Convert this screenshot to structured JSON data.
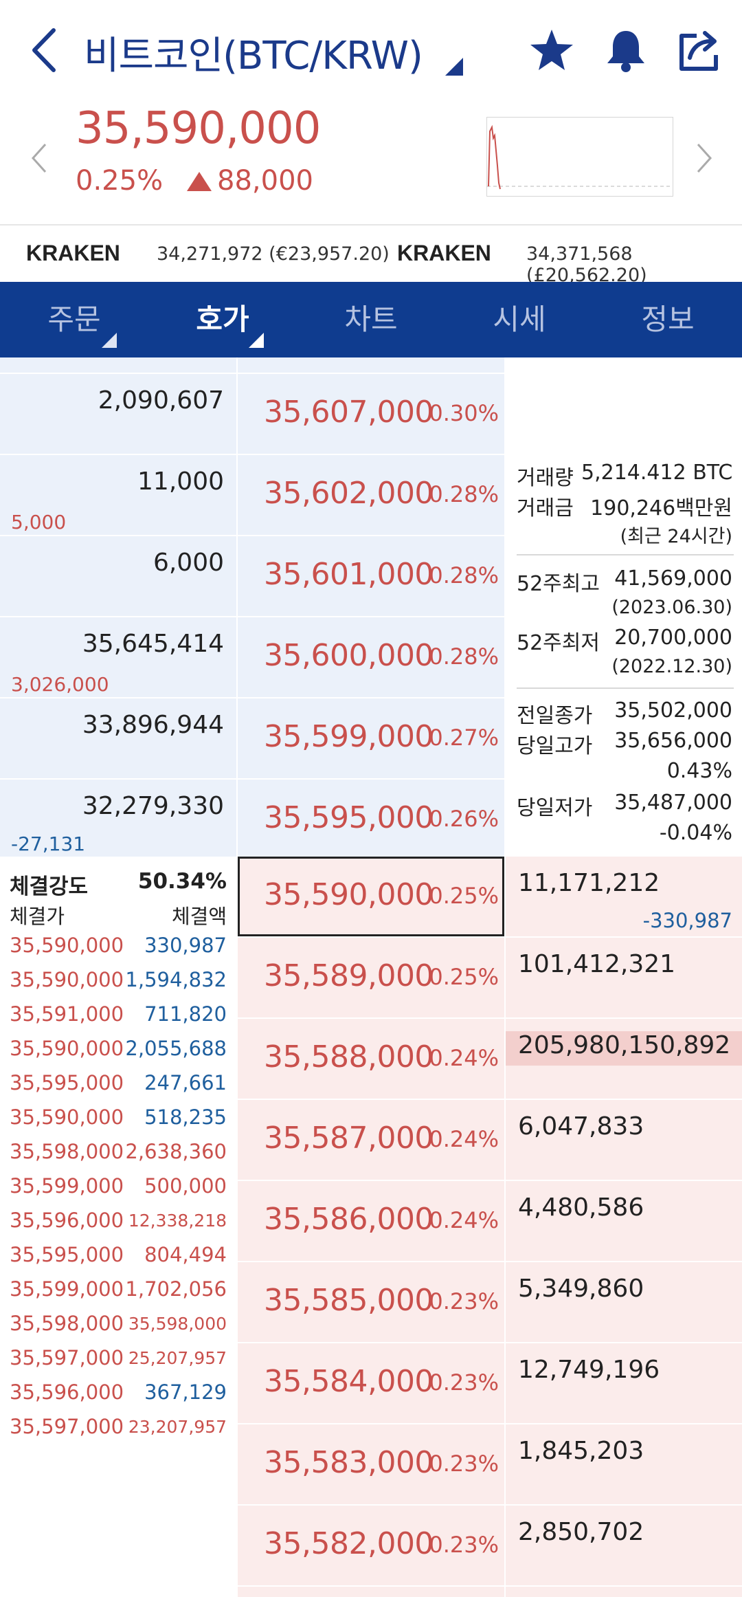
{
  "header": {
    "title": "비트코인(BTC/KRW)",
    "icons": [
      "back-icon",
      "star-icon",
      "bell-icon",
      "share-icon"
    ]
  },
  "quote": {
    "price": "35,590,000",
    "change_pct": "0.25%",
    "change_amount": "88,000"
  },
  "exchanges": [
    {
      "name": "KRAKEN",
      "value": "34,271,972 (€23,957.20)"
    },
    {
      "name": "KRAKEN",
      "value": "34,371,568 (£20,562.20)"
    }
  ],
  "tabs": [
    {
      "label": "주문",
      "active": false,
      "has_menu": true
    },
    {
      "label": "호가",
      "active": true,
      "has_menu": true
    },
    {
      "label": "차트",
      "active": false,
      "has_menu": false
    },
    {
      "label": "시세",
      "active": false,
      "has_menu": false
    },
    {
      "label": "정보",
      "active": false,
      "has_menu": false
    }
  ],
  "asks": [
    {
      "qty": "2,090,607",
      "sub": "",
      "price": "35,607,000",
      "pct": "0.30%"
    },
    {
      "qty": "11,000",
      "sub": "5,000",
      "price": "35,602,000",
      "pct": "0.28%"
    },
    {
      "qty": "6,000",
      "sub": "",
      "price": "35,601,000",
      "pct": "0.28%"
    },
    {
      "qty": "35,645,414",
      "sub": "3,026,000",
      "price": "35,600,000",
      "pct": "0.28%"
    },
    {
      "qty": "33,896,944",
      "sub": "",
      "price": "35,599,000",
      "pct": "0.27%"
    },
    {
      "qty": "32,279,330",
      "sub": "-27,131",
      "price": "35,595,000",
      "pct": "0.26%"
    }
  ],
  "bids": [
    {
      "price": "35,590,000",
      "pct": "0.25%",
      "qty": "11,171,212",
      "sub": "-330,987",
      "current": true
    },
    {
      "price": "35,589,000",
      "pct": "0.25%",
      "qty": "101,412,321",
      "sub": ""
    },
    {
      "price": "35,588,000",
      "pct": "0.24%",
      "qty": "205,980,150,892",
      "sub": "",
      "highlight": true
    },
    {
      "price": "35,587,000",
      "pct": "0.24%",
      "qty": "6,047,833",
      "sub": ""
    },
    {
      "price": "35,586,000",
      "pct": "0.24%",
      "qty": "4,480,586",
      "sub": ""
    },
    {
      "price": "35,585,000",
      "pct": "0.23%",
      "qty": "5,349,860",
      "sub": ""
    },
    {
      "price": "35,584,000",
      "pct": "0.23%",
      "qty": "12,749,196",
      "sub": ""
    },
    {
      "price": "35,583,000",
      "pct": "0.23%",
      "qty": "1,845,203",
      "sub": ""
    },
    {
      "price": "35,582,000",
      "pct": "0.23%",
      "qty": "2,850,702",
      "sub": ""
    }
  ],
  "info": {
    "volume_label": "거래량",
    "volume_value": "5,214.412 BTC",
    "amount_label": "거래금",
    "amount_value": "190,246백만원",
    "period_note": "(최근 24시간)",
    "high52_label": "52주최고",
    "high52_value": "41,569,000",
    "high52_date": "(2023.06.30)",
    "low52_label": "52주최저",
    "low52_value": "20,700,000",
    "low52_date": "(2022.12.30)",
    "prev_close_label": "전일종가",
    "prev_close_value": "35,502,000",
    "day_high_label": "당일고가",
    "day_high_value": "35,656,000",
    "day_high_pct": "0.43%",
    "day_low_label": "당일저가",
    "day_low_value": "35,487,000",
    "day_low_pct": "-0.04%"
  },
  "trades": {
    "strength_label": "체결강도",
    "strength_value": "50.34%",
    "price_header": "체결가",
    "amount_header": "체결액",
    "rows": [
      {
        "price": "35,590,000",
        "amount": "330,987",
        "color": "blue"
      },
      {
        "price": "35,590,000",
        "amount": "1,594,832",
        "color": "blue"
      },
      {
        "price": "35,591,000",
        "amount": "711,820",
        "color": "blue"
      },
      {
        "price": "35,590,000",
        "amount": "2,055,688",
        "color": "blue"
      },
      {
        "price": "35,595,000",
        "amount": "247,661",
        "color": "blue"
      },
      {
        "price": "35,590,000",
        "amount": "518,235",
        "color": "blue"
      },
      {
        "price": "35,598,000",
        "amount": "2,638,360",
        "color": "red"
      },
      {
        "price": "35,599,000",
        "amount": "500,000",
        "color": "red"
      },
      {
        "price": "35,596,000",
        "amount": "12,338,218",
        "color": "red"
      },
      {
        "price": "35,595,000",
        "amount": "804,494",
        "color": "red"
      },
      {
        "price": "35,599,000",
        "amount": "1,702,056",
        "color": "red"
      },
      {
        "price": "35,598,000",
        "amount": "35,598,000",
        "color": "red"
      },
      {
        "price": "35,597,000",
        "amount": "25,207,957",
        "color": "red"
      },
      {
        "price": "35,596,000",
        "amount": "367,129",
        "color": "blue"
      },
      {
        "price": "35,597,000",
        "amount": "23,207,957",
        "color": "red"
      }
    ]
  },
  "colors": {
    "brand_blue": "#0f3c8f",
    "up_red": "#c9504c",
    "down_blue": "#1f5f9e",
    "ask_bg": "#ebf1fa",
    "bid_bg": "#fbeceb"
  }
}
